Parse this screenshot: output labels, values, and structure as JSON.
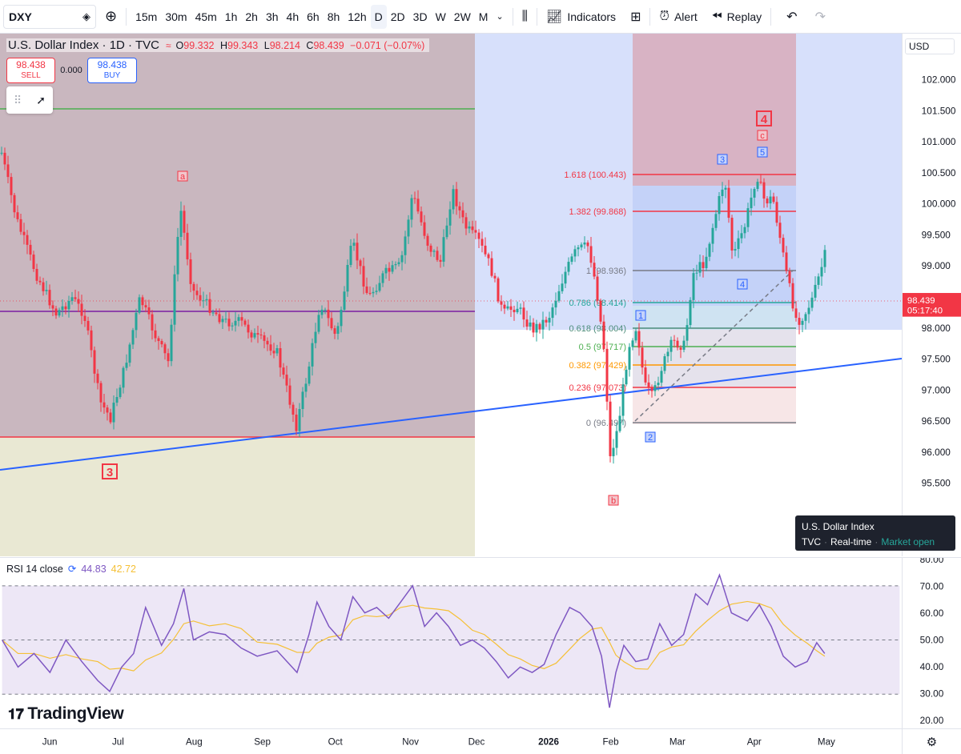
{
  "toolbar": {
    "symbol": "DXY",
    "timeframes": [
      "15m",
      "30m",
      "45m",
      "1h",
      "2h",
      "3h",
      "4h",
      "6h",
      "8h",
      "12h",
      "D",
      "2D",
      "3D",
      "W",
      "2W",
      "M"
    ],
    "active_timeframe": "D",
    "indicators_label": "Indicators",
    "alert_label": "Alert",
    "replay_label": "Replay"
  },
  "legend": {
    "title": "U.S. Dollar Index · 1D · TVC",
    "o_label": "O",
    "o": "99.332",
    "h_label": "H",
    "h": "99.343",
    "l_label": "L",
    "l": "98.214",
    "c_label": "C",
    "c": "98.439",
    "change": "−0.071 (−0.07%)"
  },
  "trade": {
    "sell_price": "98.438",
    "sell_label": "SELL",
    "spread": "0.000",
    "buy_price": "98.438",
    "buy_label": "BUY"
  },
  "currency": "USD",
  "price_ticks": [
    "102.000",
    "101.500",
    "101.000",
    "100.500",
    "100.000",
    "99.500",
    "99.000",
    "98.500",
    "98.000",
    "97.500",
    "97.000",
    "96.500",
    "96.000",
    "95.500"
  ],
  "last_price": {
    "value": "98.439",
    "countdown": "05:17:40",
    "color": "#f23645"
  },
  "fib_levels": [
    {
      "label": "1.618 (100.443)",
      "price": 100.443,
      "color": "#f23645"
    },
    {
      "label": "1.382 (99.868)",
      "price": 99.868,
      "color": "#f23645"
    },
    {
      "label": "1 (98.936)",
      "price": 98.936,
      "color": "#787b86"
    },
    {
      "label": "0.786 (98.414)",
      "price": 98.414,
      "color": "#26a69a"
    },
    {
      "label": "0.618 (98.004)",
      "price": 98.004,
      "color": "#4c8c7a"
    },
    {
      "label": "0.5 (97.717)",
      "price": 97.717,
      "color": "#4caf50"
    },
    {
      "label": "0.382 (97.429)",
      "price": 97.429,
      "color": "#ff9800"
    },
    {
      "label": "0.236 (97.073)",
      "price": 97.073,
      "color": "#f23645"
    },
    {
      "label": "0 (96.497)",
      "price": 96.497,
      "color": "#787b86"
    }
  ],
  "wave_labels": [
    {
      "text": "a",
      "color": "#f23645"
    },
    {
      "text": "3",
      "color": "#f23645"
    },
    {
      "text": "b",
      "color": "#f23645"
    },
    {
      "text": "1",
      "color": "#2962ff"
    },
    {
      "text": "2",
      "color": "#2962ff"
    },
    {
      "text": "3",
      "color": "#2962ff"
    },
    {
      "text": "4",
      "color": "#2962ff"
    },
    {
      "text": "5",
      "color": "#2962ff"
    },
    {
      "text": "c",
      "color": "#f23645"
    },
    {
      "text": "4",
      "color": "#f23645"
    }
  ],
  "tooltip": {
    "name": "U.S. Dollar Index",
    "exchange": "TVC",
    "feed": "Real-time",
    "status": "Market open"
  },
  "rsi": {
    "label": "RSI 14 close",
    "value": "44.83",
    "ma": "42.72",
    "line_color": "#7e57c2",
    "ma_color": "#f5c036",
    "ticks": [
      "80.00",
      "70.00",
      "60.00",
      "50.00",
      "40.00",
      "30.00",
      "20.00"
    ]
  },
  "time_axis": [
    "Jun",
    "Jul",
    "Aug",
    "Sep",
    "Oct",
    "Nov",
    "Dec",
    "2026",
    "Jan",
    "Feb",
    "Mar",
    "Apr",
    "May"
  ],
  "logo": "TradingView",
  "colors": {
    "up": "#26a69a",
    "down": "#f23645",
    "trendline": "#2962ff",
    "purple_line": "#7b1fa2"
  }
}
